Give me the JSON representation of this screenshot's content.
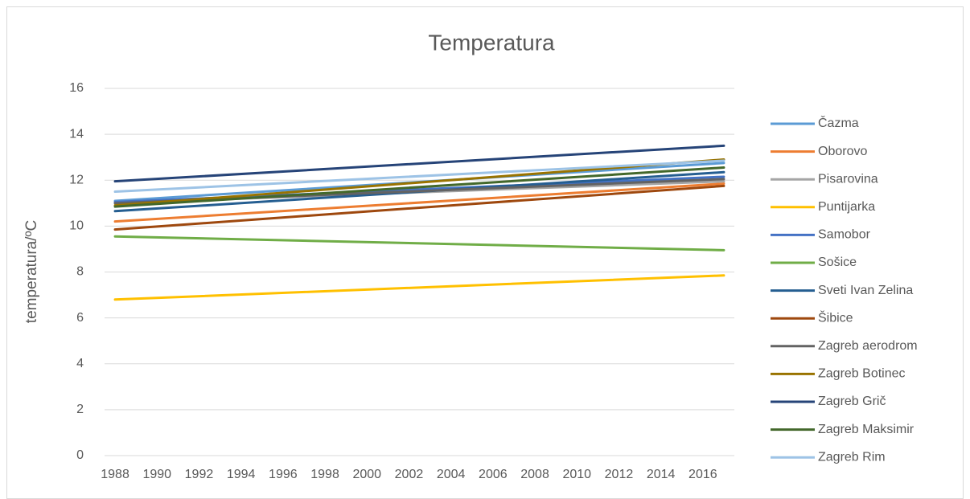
{
  "chart_data": {
    "type": "line",
    "title": "Temperatura",
    "y_label": "temperatura/ºC",
    "x": [
      1988,
      2017
    ],
    "xlim": [
      1987.5,
      2017.5
    ],
    "xticks": [
      1988,
      1990,
      1992,
      1994,
      1996,
      1998,
      2000,
      2002,
      2004,
      2006,
      2008,
      2010,
      2012,
      2014,
      2016
    ],
    "ylim": [
      0,
      16
    ],
    "yticks": [
      0,
      2,
      4,
      6,
      8,
      10,
      12,
      14,
      16
    ],
    "grid": true,
    "legend": "right",
    "series": [
      {
        "name": "Čazma",
        "color": "#5b9bd5",
        "values": [
          11.1,
          12.75
        ]
      },
      {
        "name": "Oborovo",
        "color": "#ed7d31",
        "values": [
          10.2,
          11.85
        ]
      },
      {
        "name": "Pisarovina",
        "color": "#a5a5a5",
        "values": [
          11.0,
          11.95
        ]
      },
      {
        "name": "Puntijarka",
        "color": "#ffc000",
        "values": [
          6.8,
          7.85
        ]
      },
      {
        "name": "Samobor",
        "color": "#4472c4",
        "values": [
          11.05,
          12.15
        ]
      },
      {
        "name": "Sošice",
        "color": "#70ad47",
        "values": [
          9.55,
          8.95
        ]
      },
      {
        "name": "Sveti Ivan Zelina",
        "color": "#255e91",
        "values": [
          10.65,
          12.35
        ]
      },
      {
        "name": "Šibice",
        "color": "#9e480e",
        "values": [
          9.85,
          11.75
        ]
      },
      {
        "name": "Zagreb aerodrom",
        "color": "#636363",
        "values": [
          11.0,
          12.05
        ]
      },
      {
        "name": "Zagreb Botinec",
        "color": "#997300",
        "values": [
          10.9,
          12.9
        ]
      },
      {
        "name": "Zagreb Grič",
        "color": "#264478",
        "values": [
          11.95,
          13.5
        ]
      },
      {
        "name": "Zagreb Maksimir",
        "color": "#43682b",
        "values": [
          10.85,
          12.55
        ]
      },
      {
        "name": "Zagreb Rim",
        "color": "#9dc3e6",
        "values": [
          11.5,
          12.85
        ]
      }
    ]
  }
}
